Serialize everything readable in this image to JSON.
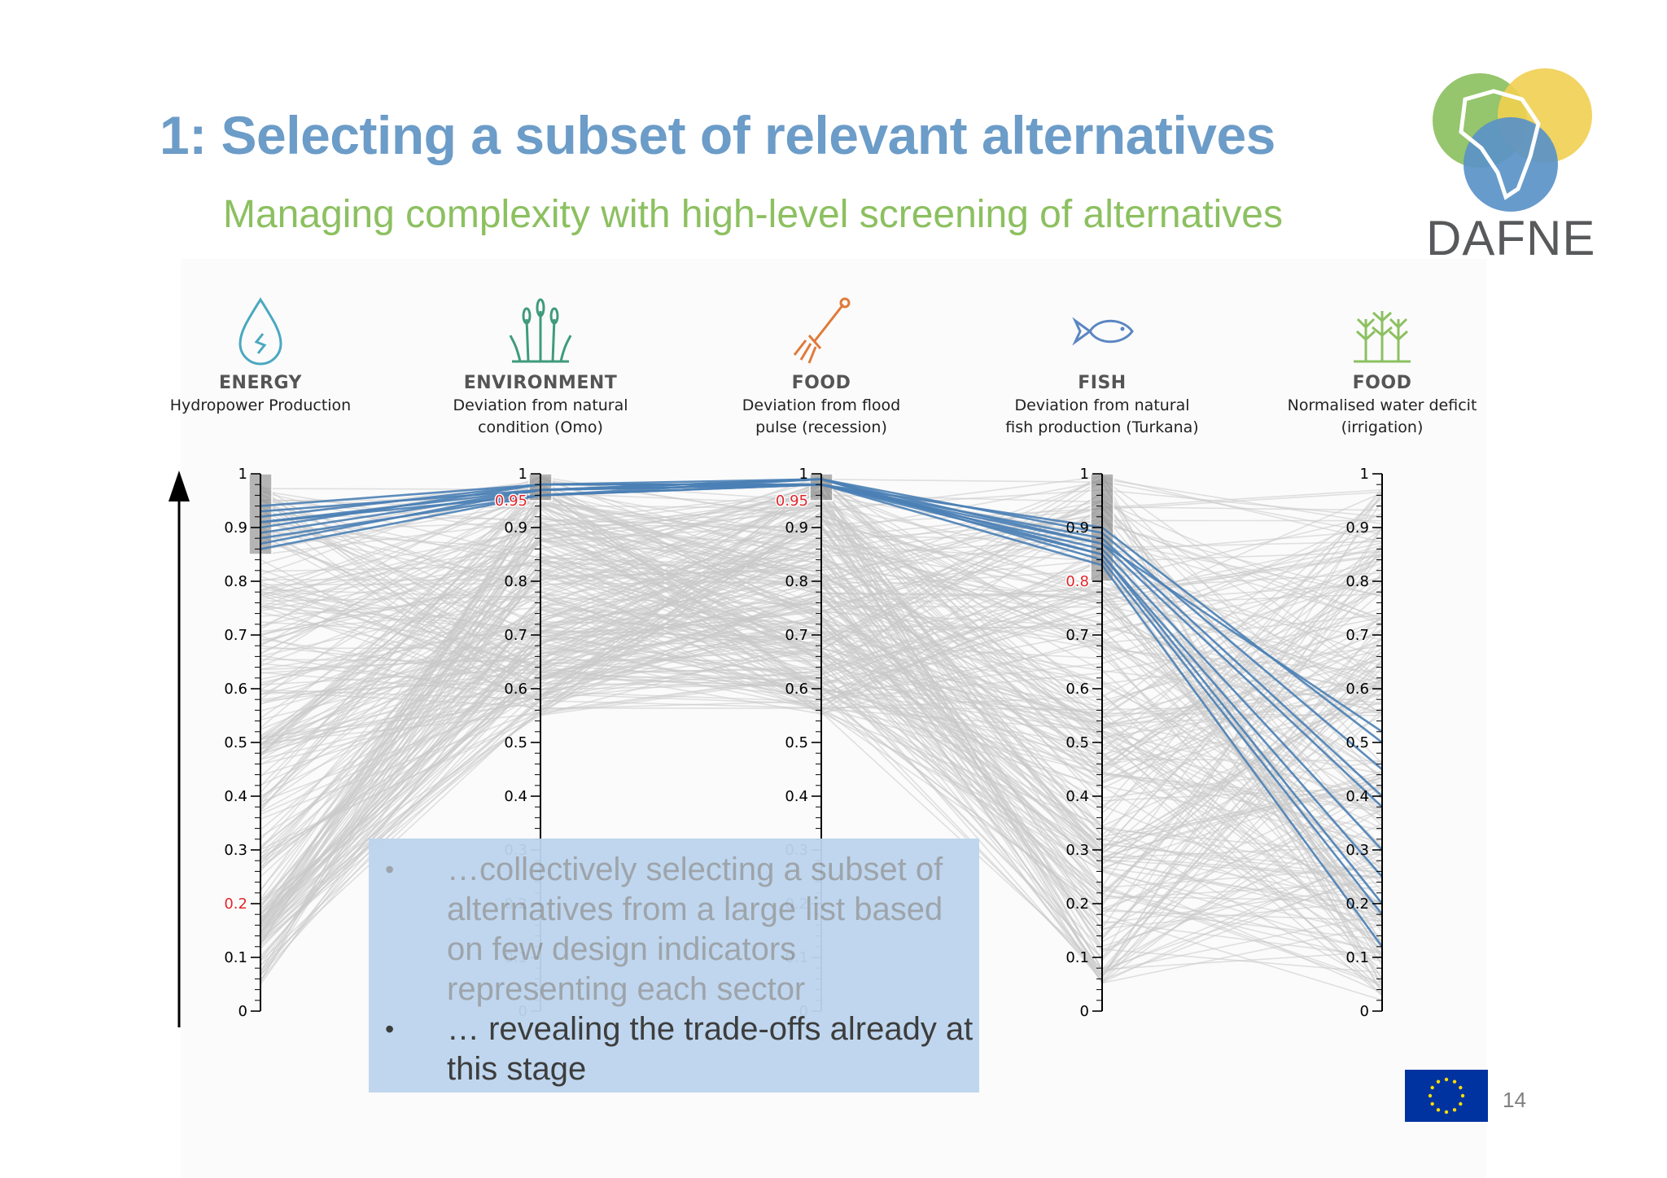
{
  "title": "1: Selecting a subset of relevant alternatives",
  "subtitle": "Managing complexity with high-level screening of alternatives",
  "logo_text": "DAFNE",
  "page_number": "14",
  "colors": {
    "title": "#6c9cc8",
    "subtitle": "#8cc060",
    "selected_lines": "#4a7fb5",
    "background_lines": "#c8c8c8",
    "highlight_tick": "#e0252b",
    "callout_bg": "#bcd5ee"
  },
  "callout": {
    "bullet_1": "…collectively selecting a subset of alternatives from a large list based on few design indicators representing each sector",
    "bullet_2": "… revealing the trade-offs already at this stage"
  },
  "chart_data": {
    "type": "parallel_coordinates",
    "ylim": [
      0,
      1
    ],
    "ticks": [
      "0",
      "0.1",
      "0.2",
      "0.3",
      "0.4",
      "0.5",
      "0.6",
      "0.7",
      "0.8",
      "0.9",
      "1"
    ],
    "axes": [
      {
        "category": "ENERGY",
        "label_line1": "Hydropower Production",
        "label_line2": "",
        "icon": "water-drop-icon",
        "icon_color": "#4aa8c0",
        "brush": [
          0.85,
          1.0
        ],
        "highlight_value": 0.2,
        "highlight_label": "0.2"
      },
      {
        "category": "ENVIRONMENT",
        "label_line1": "Deviation from natural",
        "label_line2": "condition (Omo)",
        "icon": "reeds-icon",
        "icon_color": "#3f9b7b",
        "brush": [
          0.95,
          1.0
        ],
        "highlight_value": 0.95,
        "highlight_label": "0.95"
      },
      {
        "category": "FOOD",
        "label_line1": "Deviation from flood",
        "label_line2": "pulse (recession)",
        "icon": "pitchfork-icon",
        "icon_color": "#e07a3a",
        "brush": [
          0.95,
          1.0
        ],
        "highlight_value": 0.95,
        "highlight_label": "0.95"
      },
      {
        "category": "FISH",
        "label_line1": "Deviation from natural",
        "label_line2": "fish production (Turkana)",
        "icon": "fish-icon",
        "icon_color": "#5b86c2",
        "brush": [
          0.8,
          1.0
        ],
        "highlight_value": 0.8,
        "highlight_label": "0.8"
      },
      {
        "category": "FOOD",
        "label_line1": "Normalised water deficit",
        "label_line2": "(irrigation)",
        "icon": "crops-icon",
        "icon_color": "#8cc060",
        "brush": null,
        "highlight_value": null,
        "highlight_label": ""
      }
    ],
    "selected_alternatives": [
      [
        0.93,
        0.97,
        0.98,
        0.9,
        0.5
      ],
      [
        0.91,
        0.96,
        0.99,
        0.89,
        0.45
      ],
      [
        0.9,
        0.98,
        0.98,
        0.88,
        0.4
      ],
      [
        0.89,
        0.97,
        0.99,
        0.87,
        0.38
      ],
      [
        0.88,
        0.96,
        0.98,
        0.86,
        0.3
      ],
      [
        0.87,
        0.97,
        0.98,
        0.85,
        0.25
      ],
      [
        0.92,
        0.98,
        0.99,
        0.84,
        0.18
      ],
      [
        0.86,
        0.96,
        0.98,
        0.83,
        0.12
      ],
      [
        0.91,
        0.97,
        0.99,
        0.85,
        0.2
      ],
      [
        0.94,
        0.98,
        0.98,
        0.87,
        0.52
      ]
    ]
  }
}
